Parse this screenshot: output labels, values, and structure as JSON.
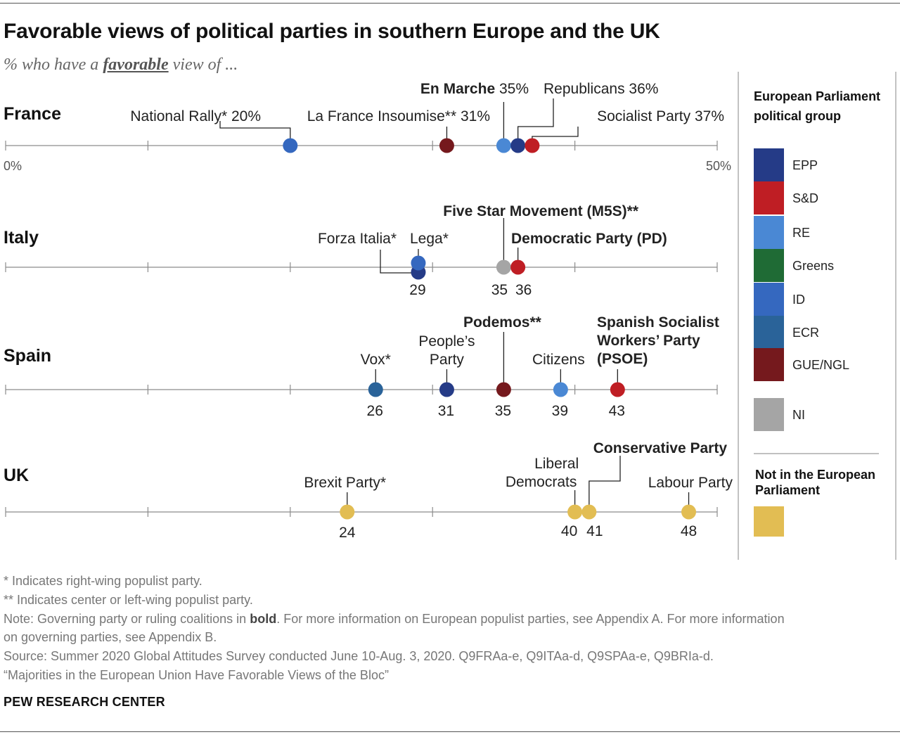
{
  "header": {
    "title": "Favorable views of political parties in southern Europe and the UK",
    "subtitle_pre": "% who have a",
    "subtitle_em": "favorable",
    "subtitle_post": "view of ..."
  },
  "legend": {
    "title_line1": "European Parliament",
    "title_line2": "political group",
    "groups": [
      {
        "key": "EPP",
        "label": "EPP",
        "color": "#253b87"
      },
      {
        "key": "S&D",
        "label": "S&D",
        "color": "#bf1e24"
      },
      {
        "key": "RE",
        "label": "RE",
        "color": "#4a88d4"
      },
      {
        "key": "Greens",
        "label": "Greens",
        "color": "#1f6b35"
      },
      {
        "key": "ID",
        "label": "ID",
        "color": "#3568bf"
      },
      {
        "key": "ECR",
        "label": "ECR",
        "color": "#2a6399"
      },
      {
        "key": "GUE/NGL",
        "label": "GUE/NGL",
        "color": "#75191d"
      },
      {
        "key": "NI",
        "label": "NI",
        "color": "#a5a5a5"
      }
    ],
    "not_in_ep_line1": "Not in the European",
    "not_in_ep_line2": "Parliament",
    "not_in_ep_color": "#e2bd53"
  },
  "chart_data": {
    "type": "scatter",
    "xlim": [
      0,
      50
    ],
    "tick_labels": [
      "0%",
      "50%"
    ],
    "rows": [
      {
        "country": "France",
        "parties": [
          {
            "name": "National Rally",
            "suffix": "*",
            "value": 20,
            "group": "ID",
            "bold": false
          },
          {
            "name": "La France Insoumise",
            "suffix": "**",
            "value": 31,
            "group": "GUE/NGL",
            "bold": false
          },
          {
            "name": "En Marche",
            "suffix": "",
            "value": 35,
            "group": "RE",
            "bold": true
          },
          {
            "name": "Republicans",
            "suffix": "",
            "value": 36,
            "group": "EPP",
            "bold": false
          },
          {
            "name": "Socialist Party",
            "suffix": "",
            "value": 37,
            "group": "S&D",
            "bold": false
          }
        ]
      },
      {
        "country": "Italy",
        "parties": [
          {
            "name": "Forza Italia",
            "suffix": "*",
            "value": 29,
            "group": "EPP",
            "bold": false
          },
          {
            "name": "Lega",
            "suffix": "*",
            "value": 29,
            "group": "ID",
            "bold": false
          },
          {
            "name": "Five Star Movement (M5S)",
            "suffix": "**",
            "value": 35,
            "group": "NI",
            "bold": true
          },
          {
            "name": "Democratic Party (PD)",
            "suffix": "",
            "value": 36,
            "group": "S&D",
            "bold": true
          }
        ]
      },
      {
        "country": "Spain",
        "parties": [
          {
            "name": "Vox",
            "suffix": "*",
            "value": 26,
            "group": "ECR",
            "bold": false
          },
          {
            "name": "People's Party",
            "suffix": "",
            "value": 31,
            "group": "EPP",
            "bold": false
          },
          {
            "name": "Podemos",
            "suffix": "**",
            "value": 35,
            "group": "GUE/NGL",
            "bold": true
          },
          {
            "name": "Citizens",
            "suffix": "",
            "value": 39,
            "group": "RE",
            "bold": false
          },
          {
            "name": "Spanish Socialist Workers' Party (PSOE)",
            "suffix": "",
            "value": 43,
            "group": "S&D",
            "bold": true
          }
        ]
      },
      {
        "country": "UK",
        "parties": [
          {
            "name": "Brexit Party",
            "suffix": "*",
            "value": 24,
            "group": "none",
            "bold": false
          },
          {
            "name": "Liberal Democrats",
            "suffix": "",
            "value": 40,
            "group": "none",
            "bold": false
          },
          {
            "name": "Conservative Party",
            "suffix": "",
            "value": 41,
            "group": "none",
            "bold": true
          },
          {
            "name": "Labour Party",
            "suffix": "",
            "value": 48,
            "group": "none",
            "bold": false
          }
        ]
      }
    ],
    "value_labels": {
      "France": [
        "20%",
        "31%",
        "35%",
        "36%",
        "37%"
      ],
      "Italy": [
        "29",
        "35",
        "36"
      ],
      "Spain": [
        "26",
        "31",
        "35",
        "39",
        "43"
      ],
      "UK": [
        "24",
        "40",
        "41",
        "48"
      ]
    }
  },
  "notes": {
    "line1": "* Indicates right-wing populist party.",
    "line2": "** Indicates center or left-wing populist party.",
    "line3_pre": "Note: Governing party or ruling coalitions in",
    "line3_bold": "bold",
    "line3_post": ". For more information on European populist parties, see Appendix A. For more information",
    "line4": "on governing parties, see Appendix B.",
    "line5": "Source: Summer 2020 Global Attitudes Survey conducted June 10-Aug. 3, 2020. Q9FRAa-e, Q9ITAa-d, Q9SPAa-e, Q9BRIa-d.",
    "line6": "“Majorities in the European Union Have Favorable Views of the Bloc”"
  },
  "credit": "PEW RESEARCH CENTER"
}
